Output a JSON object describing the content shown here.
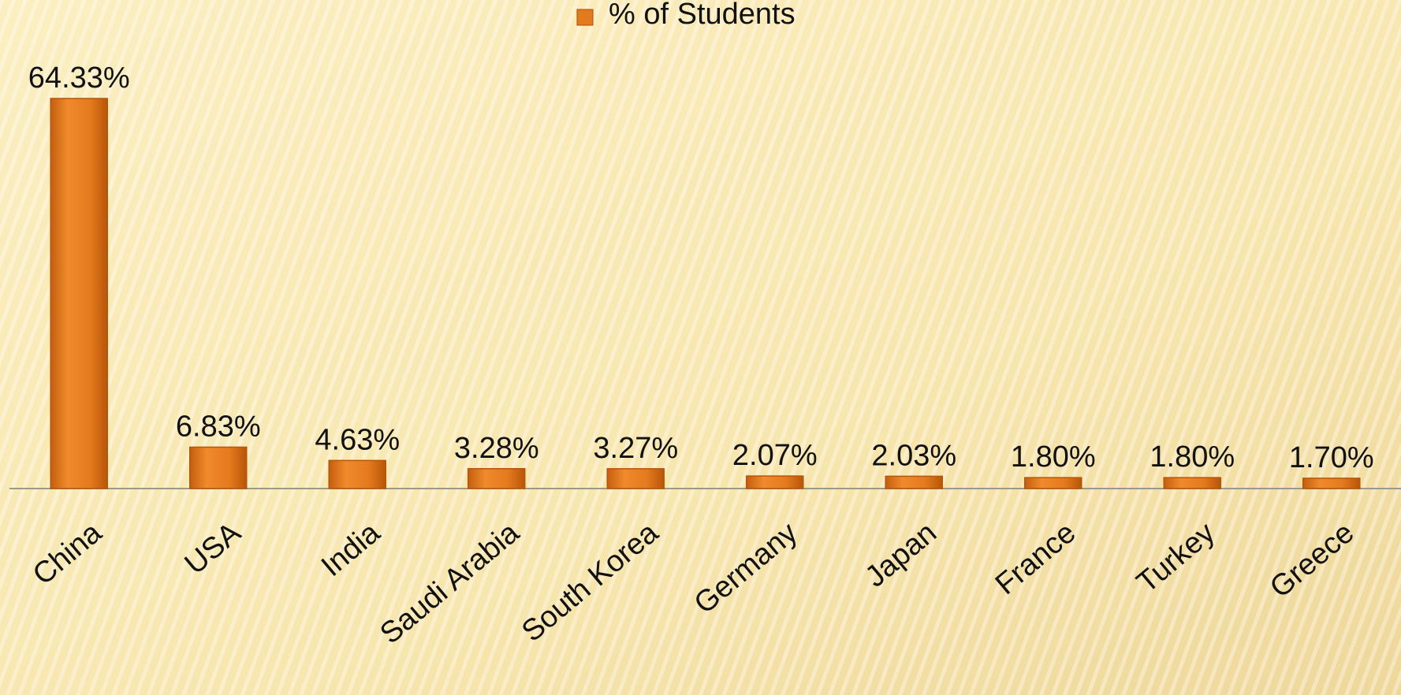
{
  "chart_data": {
    "type": "bar",
    "categories": [
      "China",
      "USA",
      "India",
      "Saudi Arabia",
      "South Korea",
      "Germany",
      "Japan",
      "France",
      "Turkey",
      "Greece"
    ],
    "series": [
      {
        "name": "% of Students",
        "color": "#e47a1e",
        "values": [
          64.33,
          6.83,
          4.63,
          3.28,
          3.27,
          2.07,
          2.03,
          1.8,
          1.8,
          1.7
        ],
        "value_labels": [
          "64.33%",
          "6.83%",
          "4.63%",
          "3.28%",
          "3.27%",
          "2.07%",
          "2.03%",
          "1.80%",
          "1.80%",
          "1.70%"
        ]
      }
    ],
    "legend": "top"
  }
}
